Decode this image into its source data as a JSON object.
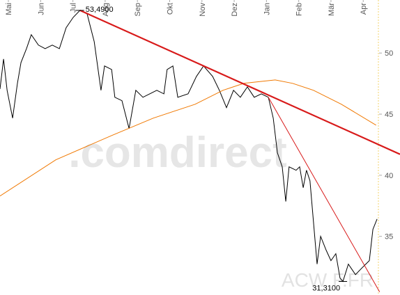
{
  "chart_data": {
    "type": "line",
    "xlim": [
      -0.26,
      12.14
    ],
    "ylim": [
      30.2,
      54.34
    ],
    "xticks": [
      {
        "value": 0,
        "label": "Mai"
      },
      {
        "value": 1,
        "label": "Jun"
      },
      {
        "value": 2,
        "label": "Jul"
      },
      {
        "value": 3,
        "label": "Aug"
      },
      {
        "value": 4,
        "label": "Sep"
      },
      {
        "value": 5,
        "label": "Okt"
      },
      {
        "value": 6,
        "label": "Nov"
      },
      {
        "value": 7,
        "label": "Dez"
      },
      {
        "value": 8,
        "label": "Jan"
      },
      {
        "value": 9,
        "label": "Feb"
      },
      {
        "value": 10,
        "label": "Mär"
      },
      {
        "value": 11,
        "label": "Apr"
      }
    ],
    "yticks": [
      35,
      40,
      45,
      50
    ],
    "today_line": 11.47,
    "today_color": "#f3d36b",
    "series": [
      {
        "color": "#000000",
        "width": 1,
        "x": [
          -0.26,
          -0.15,
          -0.04,
          0.13,
          0.28,
          0.39,
          0.56,
          0.71,
          0.93,
          1.14,
          1.36,
          1.58,
          1.79,
          2.01,
          2.22,
          2.44,
          2.66,
          2.87,
          2.98,
          3.2,
          3.3,
          3.52,
          3.74,
          3.95,
          4.17,
          4.38,
          4.6,
          4.82,
          4.92,
          5.1,
          5.25,
          5.57,
          5.83,
          6.05,
          6.33,
          6.54,
          6.76,
          6.98,
          7.19,
          7.41,
          7.62,
          7.84,
          8.06,
          8.21,
          8.34,
          8.49,
          8.6,
          8.7,
          8.92,
          9.03,
          9.14,
          9.24,
          9.35,
          9.46,
          9.57,
          9.68,
          9.85,
          10.0,
          10.15,
          10.28,
          10.37,
          10.54,
          10.76,
          10.97,
          11.19,
          11.3,
          11.43
        ],
        "values": [
          47.06,
          49.51,
          46.95,
          44.67,
          47.52,
          49.22,
          50.36,
          51.5,
          50.65,
          50.36,
          50.65,
          50.36,
          52.07,
          52.92,
          53.49,
          53.2,
          50.93,
          46.95,
          48.94,
          48.65,
          46.38,
          46.1,
          43.82,
          46.95,
          46.38,
          46.66,
          46.95,
          46.66,
          48.65,
          48.94,
          46.38,
          46.66,
          48.09,
          48.94,
          48.09,
          46.95,
          45.53,
          46.95,
          46.38,
          47.23,
          46.38,
          46.66,
          46.38,
          44.67,
          41.83,
          40.69,
          37.85,
          40.69,
          40.41,
          40.69,
          38.98,
          40.41,
          39.55,
          36.14,
          32.73,
          35.0,
          33.87,
          33.01,
          33.58,
          31.59,
          31.31,
          32.73,
          31.87,
          32.44,
          33.01,
          35.57,
          36.42
        ]
      },
      {
        "color": "#f07800",
        "width": 1,
        "x": [
          -0.26,
          1.47,
          3.2,
          4.49,
          5.79,
          6.65,
          7.3,
          8.27,
          8.81,
          9.46,
          10.32,
          11.4
        ],
        "values": [
          38.3,
          41.26,
          43.25,
          44.67,
          45.81,
          46.95,
          47.52,
          47.8,
          47.52,
          46.95,
          45.81,
          44.1
        ]
      },
      {
        "color": "#d81a1a",
        "width": 2.2,
        "x": [
          2.22,
          12.14
        ],
        "values": [
          53.49,
          41.72
        ]
      },
      {
        "color": "#d81a1a",
        "width": 1,
        "x": [
          8.06,
          11.51
        ],
        "values": [
          46.38,
          30.45
        ]
      }
    ],
    "annotations": [
      {
        "text": "53,4900",
        "x": 2.22,
        "y": 53.49
      },
      {
        "text": "31,3100",
        "x": 10.37,
        "y": 31.31
      }
    ],
    "watermarks": [
      ".comdirect",
      "ACW F.FR"
    ]
  }
}
